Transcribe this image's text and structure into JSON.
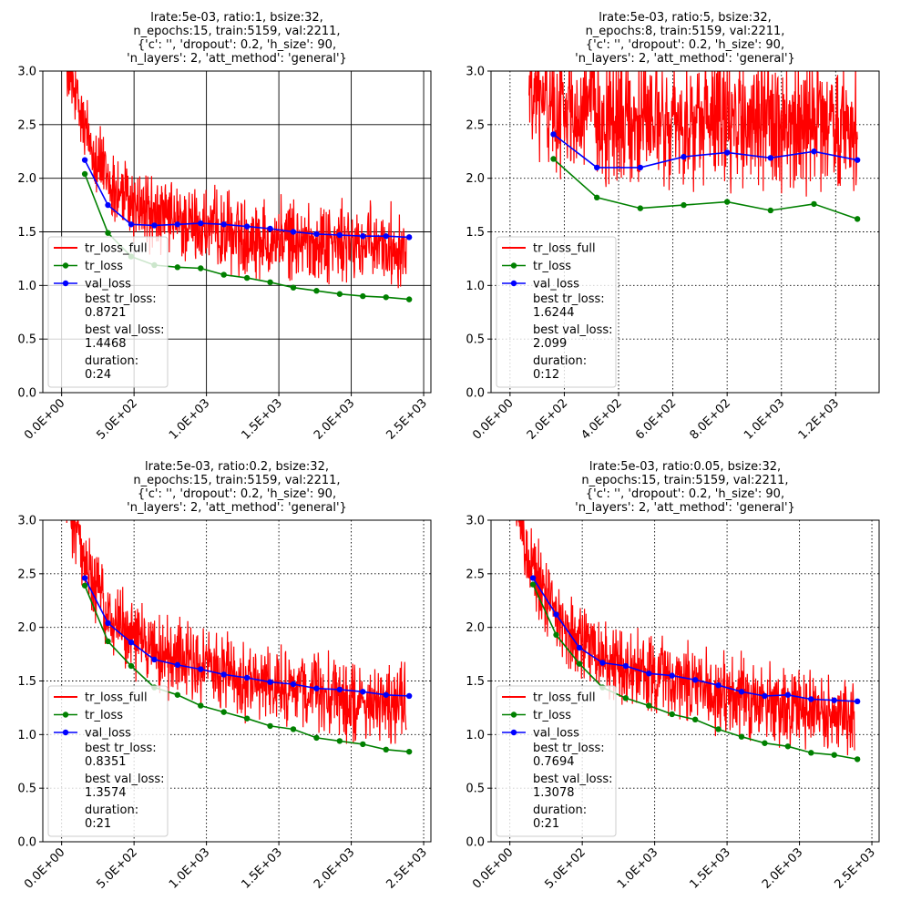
{
  "chart_data": [
    {
      "type": "line",
      "title_lines": [
        "lrate:5e-03, ratio:1, bsize:32,",
        "n_epochs:15, train:5159, val:2211,",
        "{'c': '', 'dropout': 0.2, 'h_size': 90,",
        "'n_layers': 2, 'att_method': 'general'}"
      ],
      "xlim": [
        -130,
        2550
      ],
      "ylim": [
        0,
        3
      ],
      "x_ticks": [
        0,
        500,
        1000,
        1500,
        2000,
        2500
      ],
      "x_tick_labels": [
        "0.0E+00",
        "5.0E+02",
        "1.0E+03",
        "1.5E+03",
        "2.0E+03",
        "2.5E+03"
      ],
      "y_ticks": [
        0,
        0.5,
        1,
        1.5,
        2,
        2.5,
        3
      ],
      "y_tick_labels": [
        "0.0",
        "0.5",
        "1.0",
        "1.5",
        "2.0",
        "2.5",
        "3.0"
      ],
      "grid": "solid",
      "legend_position": "lower-left",
      "series": [
        {
          "name": "tr_loss_full",
          "style": "noisy-line",
          "color": "#ff0000",
          "trend_x": [
            0,
            50,
            160,
            330,
            500,
            700,
            900,
            1100,
            1300,
            1500,
            1700,
            1900,
            2100,
            2380
          ],
          "trend_y": [
            3.5,
            2.95,
            2.45,
            1.95,
            1.75,
            1.62,
            1.55,
            1.5,
            1.46,
            1.43,
            1.41,
            1.39,
            1.37,
            1.36
          ],
          "noise_amplitude": 0.22
        },
        {
          "name": "tr_loss",
          "style": "line-dot",
          "color": "#008000",
          "x": [
            160,
            320,
            480,
            640,
            800,
            960,
            1120,
            1280,
            1440,
            1600,
            1760,
            1920,
            2080,
            2240,
            2400
          ],
          "y": [
            2.04,
            1.49,
            1.27,
            1.19,
            1.17,
            1.16,
            1.1,
            1.07,
            1.03,
            0.98,
            0.95,
            0.92,
            0.9,
            0.89,
            0.87
          ]
        },
        {
          "name": "val_loss",
          "style": "line-dot",
          "color": "#0000ff",
          "x": [
            160,
            320,
            480,
            640,
            800,
            960,
            1120,
            1280,
            1440,
            1600,
            1760,
            1920,
            2080,
            2240,
            2400
          ],
          "y": [
            2.17,
            1.75,
            1.57,
            1.56,
            1.57,
            1.58,
            1.57,
            1.55,
            1.53,
            1.5,
            1.48,
            1.47,
            1.46,
            1.46,
            1.45
          ]
        }
      ],
      "legend_notes": [
        "best tr_loss:",
        "0.8721",
        "best val_loss:",
        "1.4468",
        "duration:",
        "0:24"
      ]
    },
    {
      "type": "line",
      "title_lines": [
        "lrate:5e-03, ratio:5, bsize:32,",
        "n_epochs:8, train:5159, val:2211,",
        "{'c': '', 'dropout': 0.2, 'h_size': 90,",
        "'n_layers': 2, 'att_method': 'general'}"
      ],
      "xlim": [
        -70,
        1360
      ],
      "ylim": [
        0,
        3
      ],
      "x_ticks": [
        0,
        200,
        400,
        600,
        800,
        1000,
        1200
      ],
      "x_tick_labels": [
        "0.0E+00",
        "2.0E+02",
        "4.0E+02",
        "6.0E+02",
        "8.0E+02",
        "1.0E+03",
        "1.2E+03"
      ],
      "y_ticks": [
        0,
        0.5,
        1,
        1.5,
        2,
        2.5,
        3
      ],
      "y_tick_labels": [
        "0.0",
        "0.5",
        "1.0",
        "1.5",
        "2.0",
        "2.5",
        "3.0"
      ],
      "grid": "dotted",
      "legend_position": "lower-left",
      "series": [
        {
          "name": "tr_loss_full",
          "style": "noisy-line",
          "color": "#ff0000",
          "trend_x": [
            70,
            200,
            400,
            600,
            800,
            1000,
            1280
          ],
          "trend_y": [
            2.75,
            2.65,
            2.55,
            2.5,
            2.5,
            2.5,
            2.45
          ],
          "noise_amplitude": 0.35
        },
        {
          "name": "tr_loss",
          "style": "line-dot",
          "color": "#008000",
          "x": [
            160,
            320,
            480,
            640,
            800,
            960,
            1120,
            1280
          ],
          "y": [
            2.18,
            1.82,
            1.72,
            1.75,
            1.78,
            1.7,
            1.76,
            1.62
          ]
        },
        {
          "name": "val_loss",
          "style": "line-dot",
          "color": "#0000ff",
          "x": [
            160,
            320,
            480,
            640,
            800,
            960,
            1120,
            1280
          ],
          "y": [
            2.41,
            2.1,
            2.1,
            2.2,
            2.24,
            2.19,
            2.25,
            2.17
          ]
        }
      ],
      "legend_notes": [
        "best tr_loss:",
        "1.6244",
        "best val_loss:",
        "2.099",
        "duration:",
        "0:12"
      ]
    },
    {
      "type": "line",
      "title_lines": [
        "lrate:5e-03, ratio:0.2, bsize:32,",
        "n_epochs:15, train:5159, val:2211,",
        "{'c': '', 'dropout': 0.2, 'h_size': 90,",
        "'n_layers': 2, 'att_method': 'general'}"
      ],
      "xlim": [
        -130,
        2550
      ],
      "ylim": [
        0,
        3
      ],
      "x_ticks": [
        0,
        500,
        1000,
        1500,
        2000,
        2500
      ],
      "x_tick_labels": [
        "0.0E+00",
        "5.0E+02",
        "1.0E+03",
        "1.5E+03",
        "2.0E+03",
        "2.5E+03"
      ],
      "y_ticks": [
        0,
        0.5,
        1,
        1.5,
        2,
        2.5,
        3
      ],
      "y_tick_labels": [
        "0.0",
        "0.5",
        "1.0",
        "1.5",
        "2.0",
        "2.5",
        "3.0"
      ],
      "grid": "dotted",
      "legend_position": "lower-left",
      "series": [
        {
          "name": "tr_loss_full",
          "style": "noisy-line",
          "color": "#ff0000",
          "trend_x": [
            30,
            160,
            320,
            500,
            700,
            900,
            1100,
            1300,
            1500,
            1700,
            1900,
            2100,
            2380
          ],
          "trend_y": [
            3.3,
            2.6,
            2.15,
            1.9,
            1.75,
            1.65,
            1.57,
            1.5,
            1.44,
            1.39,
            1.34,
            1.3,
            1.25
          ],
          "noise_amplitude": 0.22
        },
        {
          "name": "tr_loss",
          "style": "line-dot",
          "color": "#008000",
          "x": [
            160,
            320,
            480,
            640,
            800,
            960,
            1120,
            1280,
            1440,
            1600,
            1760,
            1920,
            2080,
            2240,
            2400
          ],
          "y": [
            2.39,
            1.87,
            1.64,
            1.44,
            1.37,
            1.27,
            1.21,
            1.15,
            1.08,
            1.05,
            0.97,
            0.94,
            0.91,
            0.86,
            0.84
          ]
        },
        {
          "name": "val_loss",
          "style": "line-dot",
          "color": "#0000ff",
          "x": [
            160,
            320,
            480,
            640,
            800,
            960,
            1120,
            1280,
            1440,
            1600,
            1760,
            1920,
            2080,
            2240,
            2400
          ],
          "y": [
            2.46,
            2.04,
            1.86,
            1.7,
            1.65,
            1.61,
            1.56,
            1.53,
            1.49,
            1.47,
            1.43,
            1.42,
            1.4,
            1.37,
            1.36
          ]
        }
      ],
      "legend_notes": [
        "best tr_loss:",
        "0.8351",
        "best val_loss:",
        "1.3574",
        "duration:",
        "0:21"
      ]
    },
    {
      "type": "line",
      "title_lines": [
        "lrate:5e-03, ratio:0.05, bsize:32,",
        "n_epochs:15, train:5159, val:2211,",
        "{'c': '', 'dropout': 0.2, 'h_size': 90,",
        "'n_layers': 2, 'att_method': 'general'}"
      ],
      "xlim": [
        -130,
        2550
      ],
      "ylim": [
        0,
        3
      ],
      "x_ticks": [
        0,
        500,
        1000,
        1500,
        2000,
        2500
      ],
      "x_tick_labels": [
        "0.0E+00",
        "5.0E+02",
        "1.0E+03",
        "1.5E+03",
        "2.0E+03",
        "2.5E+03"
      ],
      "y_ticks": [
        0,
        0.5,
        1,
        1.5,
        2,
        2.5,
        3
      ],
      "y_tick_labels": [
        "0.0",
        "0.5",
        "1.0",
        "1.5",
        "2.0",
        "2.5",
        "3.0"
      ],
      "grid": "dotted",
      "legend_position": "lower-left",
      "series": [
        {
          "name": "tr_loss_full",
          "style": "noisy-line",
          "color": "#ff0000",
          "trend_x": [
            0,
            160,
            320,
            500,
            700,
            900,
            1100,
            1300,
            1500,
            1700,
            1900,
            2100,
            2380
          ],
          "trend_y": [
            3.3,
            2.55,
            2.1,
            1.85,
            1.68,
            1.58,
            1.5,
            1.43,
            1.37,
            1.32,
            1.27,
            1.22,
            1.18
          ],
          "noise_amplitude": 0.22
        },
        {
          "name": "tr_loss",
          "style": "line-dot",
          "color": "#008000",
          "x": [
            160,
            320,
            480,
            640,
            800,
            960,
            1120,
            1280,
            1440,
            1600,
            1760,
            1920,
            2080,
            2240,
            2400
          ],
          "y": [
            2.4,
            1.93,
            1.66,
            1.44,
            1.34,
            1.27,
            1.19,
            1.14,
            1.05,
            0.98,
            0.92,
            0.89,
            0.83,
            0.81,
            0.77
          ]
        },
        {
          "name": "val_loss",
          "style": "line-dot",
          "color": "#0000ff",
          "x": [
            160,
            320,
            480,
            640,
            800,
            960,
            1120,
            1280,
            1440,
            1600,
            1760,
            1920,
            2080,
            2240,
            2400
          ],
          "y": [
            2.46,
            2.12,
            1.81,
            1.67,
            1.64,
            1.57,
            1.55,
            1.51,
            1.46,
            1.4,
            1.36,
            1.37,
            1.33,
            1.32,
            1.31
          ]
        }
      ],
      "legend_notes": [
        "best tr_loss:",
        "0.7694",
        "best val_loss:",
        "1.3078",
        "duration:",
        "0:21"
      ]
    }
  ]
}
